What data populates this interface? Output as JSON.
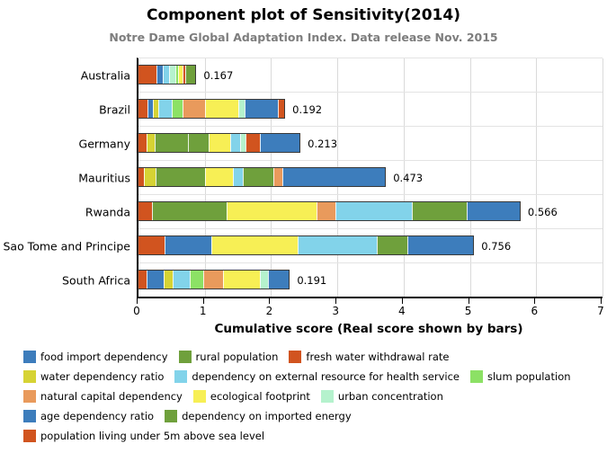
{
  "chart_data": {
    "type": "bar",
    "orientation": "horizontal_stacked",
    "title": "Component plot of Sensitivity(2014)",
    "subtitle": "Notre Dame Global Adaptation Index. Data release Nov. 2015",
    "xlabel": "Cumulative score (Real score shown by bars)",
    "ylabel": "",
    "x_min": 0,
    "x_max": 7,
    "x_ticks": [
      "0",
      "1",
      "2",
      "3",
      "4",
      "5",
      "6",
      "7"
    ],
    "grid": "light gray vertical gridlines at integer ticks, light horizontal row separators",
    "legend_position": "bottom",
    "note": "bar value labels show real score; segment lengths show cumulative component scores",
    "categories": [
      "Australia",
      "Brazil",
      "Germany",
      "Mauritius",
      "Rwanda",
      "Sao Tome and Principe",
      "South Africa"
    ],
    "scores": [
      "0.167",
      "0.192",
      "0.213",
      "0.473",
      "0.566",
      "0.756",
      "0.191"
    ],
    "components": [
      {
        "label": "food import dependency",
        "color": "#3d7dbc"
      },
      {
        "label": "rural population",
        "color": "#6fa03c"
      },
      {
        "label": "fresh water withdrawal rate",
        "color": "#d1541f"
      },
      {
        "label": "water dependency ratio",
        "color": "#d6d334"
      },
      {
        "label": "dependency on external resource for health service",
        "color": "#82d3ea"
      },
      {
        "label": "slum population",
        "color": "#8ce165"
      },
      {
        "label": "natural capital dependency",
        "color": "#e99a5c"
      },
      {
        "label": "ecological footprint",
        "color": "#f7ef55"
      },
      {
        "label": "urban concentration",
        "color": "#b5f2cd"
      },
      {
        "label": "age dependency ratio",
        "color": "#3d7dbc"
      },
      {
        "label": "dependency on imported energy",
        "color": "#6fa03c"
      },
      {
        "label": "population living under 5m above sea level",
        "color": "#d1541f"
      }
    ],
    "bars": [
      {
        "country": "Australia",
        "score": "0.167",
        "segments": [
          {
            "component": "fresh water withdrawal rate",
            "value": 0.27
          },
          {
            "component": "food import dependency",
            "value": 0.1
          },
          {
            "component": "dependency on external resource for health service",
            "value": 0.09
          },
          {
            "component": "urban concentration",
            "value": 0.09
          },
          {
            "component": "slum population",
            "value": 0.05
          },
          {
            "component": "ecological footprint",
            "value": 0.07
          },
          {
            "component": "population living under 5m above sea level",
            "value": 0.04
          },
          {
            "component": "dependency on imported energy",
            "value": 0.15
          }
        ]
      },
      {
        "country": "Brazil",
        "score": "0.192",
        "segments": [
          {
            "component": "fresh water withdrawal rate",
            "value": 0.14
          },
          {
            "component": "food import dependency",
            "value": 0.08
          },
          {
            "component": "water dependency ratio",
            "value": 0.08
          },
          {
            "component": "dependency on external resource for health service",
            "value": 0.2
          },
          {
            "component": "slum population",
            "value": 0.16
          },
          {
            "component": "natural capital dependency",
            "value": 0.34
          },
          {
            "component": "ecological footprint",
            "value": 0.5
          },
          {
            "component": "urban concentration",
            "value": 0.1
          },
          {
            "component": "age dependency ratio",
            "value": 0.5
          },
          {
            "component": "population living under 5m above sea level",
            "value": 0.1
          }
        ]
      },
      {
        "country": "Germany",
        "score": "0.213",
        "segments": [
          {
            "component": "fresh water withdrawal rate",
            "value": 0.12
          },
          {
            "component": "water dependency ratio",
            "value": 0.12
          },
          {
            "component": "rural population",
            "value": 0.5
          },
          {
            "component": "dependency on imported energy",
            "value": 0.32
          },
          {
            "component": "ecological footprint",
            "value": 0.32
          },
          {
            "component": "dependency on external resource for health service",
            "value": 0.15
          },
          {
            "component": "urban concentration",
            "value": 0.08
          },
          {
            "component": "population living under 5m above sea level",
            "value": 0.22
          },
          {
            "component": "age dependency ratio",
            "value": 0.6
          }
        ]
      },
      {
        "country": "Mauritius",
        "score": "0.473",
        "segments": [
          {
            "component": "fresh water withdrawal rate",
            "value": 0.08
          },
          {
            "component": "water dependency ratio",
            "value": 0.18
          },
          {
            "component": "rural population",
            "value": 0.75
          },
          {
            "component": "ecological footprint",
            "value": 0.42
          },
          {
            "component": "dependency on external resource for health service",
            "value": 0.15
          },
          {
            "component": "dependency on imported energy",
            "value": 0.45
          },
          {
            "component": "natural capital dependency",
            "value": 0.14
          },
          {
            "component": "age dependency ratio",
            "value": 1.55
          }
        ]
      },
      {
        "country": "Rwanda",
        "score": "0.566",
        "segments": [
          {
            "component": "fresh water withdrawal rate",
            "value": 0.21
          },
          {
            "component": "rural population",
            "value": 1.12
          },
          {
            "component": "ecological footprint",
            "value": 1.36
          },
          {
            "component": "natural capital dependency",
            "value": 0.28
          },
          {
            "component": "dependency on external resource for health service",
            "value": 1.16
          },
          {
            "component": "dependency on imported energy",
            "value": 0.82
          },
          {
            "component": "age dependency ratio",
            "value": 0.8
          }
        ]
      },
      {
        "country": "Sao Tome and Principe",
        "score": "0.756",
        "segments": [
          {
            "component": "fresh water withdrawal rate",
            "value": 0.4
          },
          {
            "component": "food import dependency",
            "value": 0.7
          },
          {
            "component": "ecological footprint",
            "value": 1.3
          },
          {
            "component": "dependency on external resource for health service",
            "value": 1.2
          },
          {
            "component": "dependency on imported energy",
            "value": 0.45
          },
          {
            "component": "age dependency ratio",
            "value": 1.0
          }
        ]
      },
      {
        "country": "South Africa",
        "score": "0.191",
        "segments": [
          {
            "component": "fresh water withdrawal rate",
            "value": 0.12
          },
          {
            "component": "food import dependency",
            "value": 0.26
          },
          {
            "component": "water dependency ratio",
            "value": 0.14
          },
          {
            "component": "dependency on external resource for health service",
            "value": 0.26
          },
          {
            "component": "slum population",
            "value": 0.2
          },
          {
            "component": "natural capital dependency",
            "value": 0.3
          },
          {
            "component": "ecological footprint",
            "value": 0.55
          },
          {
            "component": "urban concentration",
            "value": 0.12
          },
          {
            "component": "age dependency ratio",
            "value": 0.32
          }
        ]
      }
    ]
  }
}
